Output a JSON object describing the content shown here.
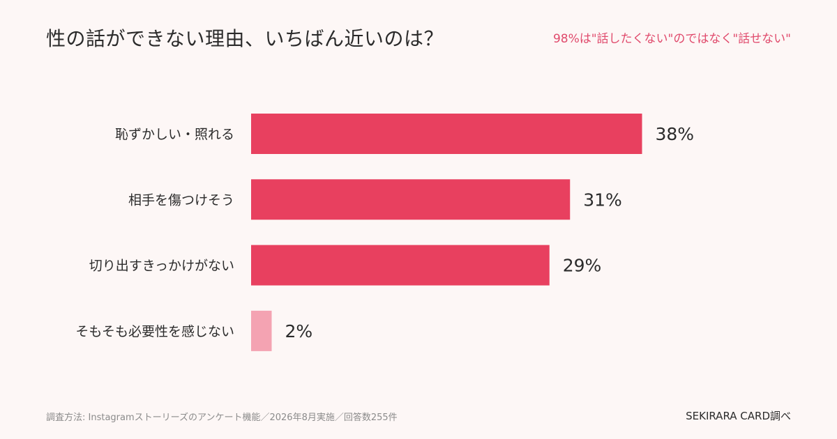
{
  "header": {
    "title": "性の話ができない理由、いちばん近いのは？",
    "note": "98%は\"話したくない\"のではなく\"話せない\""
  },
  "chart_data": {
    "type": "bar",
    "orientation": "horizontal",
    "categories": [
      "恥ずかしい・照れる",
      "相手を傷つけそう",
      "切り出すきっかけがない",
      "そもそも必要性を感じない"
    ],
    "values": [
      38,
      31,
      29,
      2
    ],
    "value_labels": [
      "38%",
      "31%",
      "29%",
      "2%"
    ],
    "unit": "%",
    "xlim": [
      0,
      100
    ],
    "grid": false,
    "legend": "none",
    "colors": [
      "#e8405f",
      "#e8405f",
      "#e8405f",
      "#f4a3b2"
    ]
  },
  "footer": {
    "source": "調査方法: Instagramストーリーズのアンケート機能／2026年8月実施／回答数255件",
    "credit": "SEKIRARA CARD調べ"
  }
}
